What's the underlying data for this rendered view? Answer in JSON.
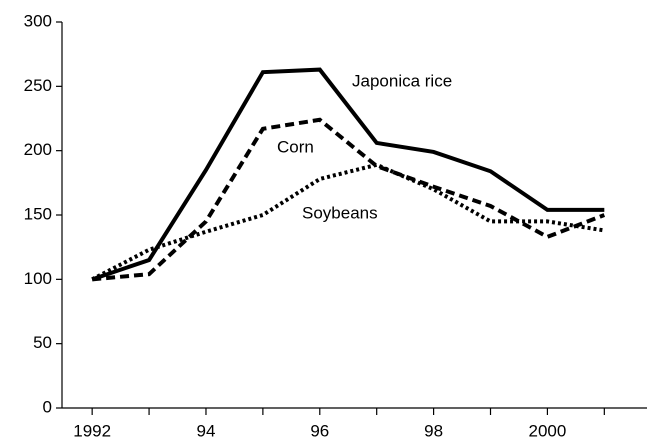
{
  "chart_data": {
    "type": "line",
    "x": [
      1992,
      1993,
      1994,
      1995,
      1996,
      1997,
      1998,
      1999,
      2000,
      2001
    ],
    "series": [
      {
        "name": "Japonica rice",
        "color": "#000000",
        "dash": "solid",
        "values": [
          100,
          115,
          185,
          261,
          263,
          206,
          199,
          184,
          154,
          154
        ]
      },
      {
        "name": "Corn",
        "color": "#000000",
        "dash": "dashed",
        "values": [
          100,
          104,
          145,
          217,
          224,
          188,
          172,
          157,
          133,
          150
        ]
      },
      {
        "name": "Soybeans",
        "color": "#000000",
        "dash": "dotted",
        "values": [
          100,
          123,
          137,
          150,
          178,
          189,
          170,
          145,
          145,
          138
        ]
      }
    ],
    "xlim": [
      1991.47,
      2001.75
    ],
    "xticks": [
      1992,
      {
        "value": 1994,
        "label": "94"
      },
      {
        "value": 1996,
        "label": "96"
      },
      {
        "value": 1998,
        "label": "98"
      },
      2000
    ],
    "x_minor_ticks": [
      1993,
      1995,
      1997,
      1999,
      2001
    ],
    "ylim": [
      0,
      300
    ],
    "yticks": [
      0,
      50,
      100,
      150,
      200,
      250,
      300
    ],
    "grid": false
  }
}
